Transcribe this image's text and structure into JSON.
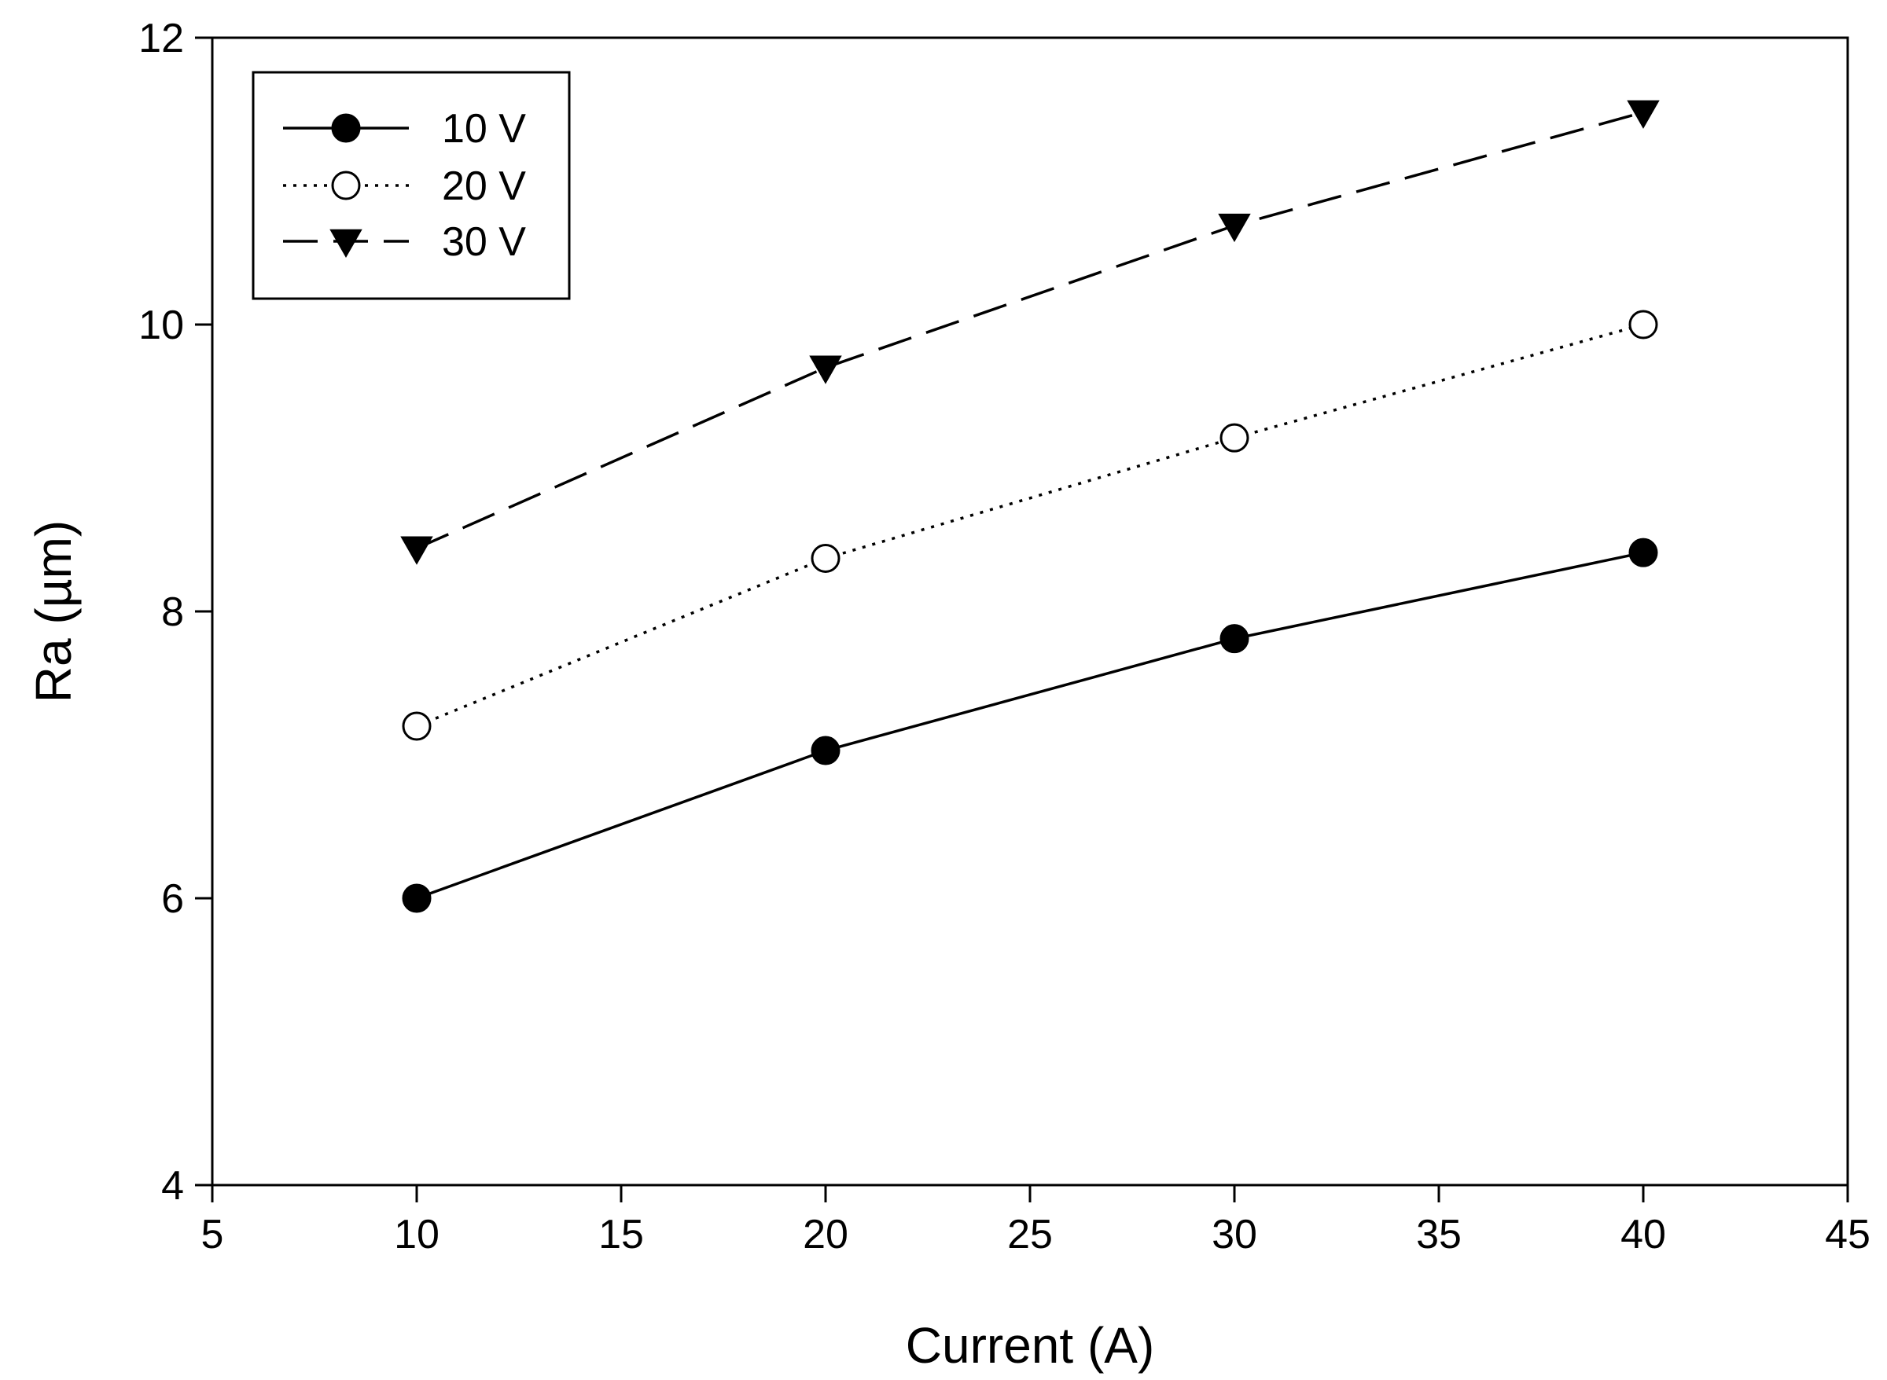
{
  "chart_data": {
    "type": "line",
    "title": "",
    "xlabel": "Current (A)",
    "ylabel": "Ra (µm)",
    "xlim": [
      5,
      45
    ],
    "ylim": [
      4,
      12
    ],
    "x_ticks": [
      5,
      10,
      15,
      20,
      25,
      30,
      35,
      40,
      45
    ],
    "x_tick_labels": [
      "5",
      "10",
      "15",
      "20",
      "25",
      "30",
      "35",
      "40",
      "45"
    ],
    "y_ticks": [
      4,
      6,
      8,
      10,
      12
    ],
    "y_tick_labels": [
      "4",
      "6",
      "8",
      "10",
      "12"
    ],
    "grid": false,
    "legend_position": "top-left",
    "x": [
      10,
      20,
      30,
      40
    ],
    "series": [
      {
        "name": "10 V",
        "values": [
          6.0,
          7.03,
          7.81,
          8.41
        ],
        "marker": "filled-circle",
        "line_style": "solid",
        "color": "#000000"
      },
      {
        "name": "20 V",
        "values": [
          7.2,
          8.37,
          9.21,
          10.0
        ],
        "marker": "open-circle",
        "line_style": "dotted",
        "color": "#000000"
      },
      {
        "name": "30 V",
        "values": [
          8.44,
          9.7,
          10.69,
          11.48
        ],
        "marker": "filled-triangle-down",
        "line_style": "dashed",
        "color": "#000000"
      }
    ]
  }
}
